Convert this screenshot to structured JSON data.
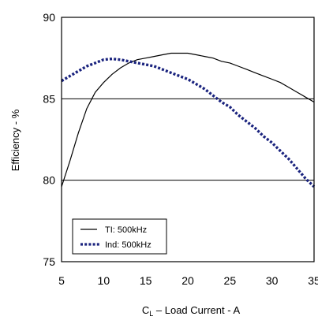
{
  "chart_data": {
    "type": "line",
    "title": "",
    "xlabel_main": "C",
    "xlabel_sub": "L",
    "xlabel_rest": " – Load Current - A",
    "ylabel": "Efficiency - %",
    "xlim": [
      5,
      35
    ],
    "ylim": [
      75,
      90
    ],
    "x_ticks": [
      "5",
      "10",
      "15",
      "20",
      "25",
      "30",
      "35"
    ],
    "y_ticks": [
      "75",
      "80",
      "85",
      "90"
    ],
    "grid": true,
    "legend_position": "bottom-left",
    "series": [
      {
        "name": "TI: 500kHz",
        "style": "solid",
        "color": "#000000",
        "x": [
          5,
          6,
          7,
          8,
          9,
          10,
          11,
          12,
          13,
          14,
          15,
          16,
          17,
          18,
          19,
          20,
          21,
          22,
          23,
          24,
          25,
          26,
          27,
          28,
          29,
          30,
          31,
          32,
          33,
          34,
          35
        ],
        "y": [
          79.6,
          81.2,
          82.9,
          84.4,
          85.4,
          86.0,
          86.5,
          86.9,
          87.2,
          87.4,
          87.5,
          87.6,
          87.7,
          87.8,
          87.8,
          87.8,
          87.7,
          87.6,
          87.5,
          87.3,
          87.2,
          87.0,
          86.8,
          86.6,
          86.4,
          86.2,
          86.0,
          85.7,
          85.4,
          85.1,
          84.8
        ]
      },
      {
        "name": "Ind: 500kHz",
        "style": "dotted",
        "color": "#1a237e",
        "x": [
          5,
          6,
          7,
          8,
          9,
          10,
          11,
          12,
          13,
          14,
          15,
          16,
          17,
          18,
          19,
          20,
          21,
          22,
          23,
          24,
          25,
          26,
          27,
          28,
          29,
          30,
          31,
          32,
          33,
          34,
          35
        ],
        "y": [
          86.1,
          86.4,
          86.7,
          87.0,
          87.2,
          87.4,
          87.45,
          87.4,
          87.3,
          87.2,
          87.1,
          87.0,
          86.8,
          86.6,
          86.4,
          86.2,
          85.9,
          85.6,
          85.2,
          84.8,
          84.5,
          84.0,
          83.6,
          83.2,
          82.7,
          82.3,
          81.8,
          81.3,
          80.7,
          80.1,
          79.6
        ]
      }
    ]
  }
}
